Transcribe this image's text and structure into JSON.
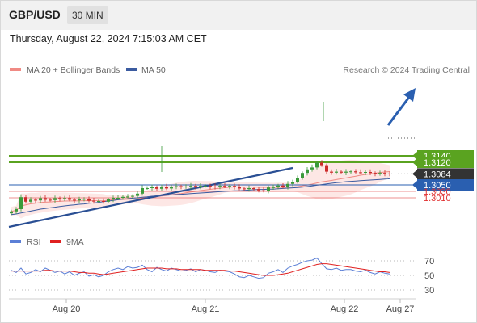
{
  "header": {
    "symbol": "GBP/USD",
    "timeframe": "30 MIN"
  },
  "datetime": "Thursday, August 22, 2024 7:15:03 AM CET",
  "legend": [
    {
      "label": "MA 20 + Bollinger Bands",
      "color": "#f08a84"
    },
    {
      "label": "MA 50",
      "color": "#3b5ba0"
    }
  ],
  "credit": "Research © 2024 Trading Central",
  "rsi_legend": [
    {
      "label": "RSI",
      "color": "#5b7fd6"
    },
    {
      "label": "9MA",
      "color": "#e02020"
    }
  ],
  "levels": [
    {
      "value": 1.314,
      "label": "1.3140",
      "type": "resistance",
      "color": "#5aa320"
    },
    {
      "value": 1.312,
      "label": "1.3120",
      "type": "resistance",
      "color": "#5aa320"
    },
    {
      "value": 1.3084,
      "label": "1.3084",
      "type": "last",
      "color": "#333333"
    },
    {
      "value": 1.305,
      "label": "1.3050",
      "type": "pivot",
      "color": "#2a5fb0"
    },
    {
      "value": 1.303,
      "label": "1.3030",
      "type": "support",
      "color": "#e03030"
    },
    {
      "value": 1.301,
      "label": "1.3010",
      "type": "support",
      "color": "#e03030"
    }
  ],
  "chart_data": {
    "type": "candlestick",
    "x_ticks": [
      "Aug 20",
      "Aug 21",
      "Aug 22",
      "Aug 27"
    ],
    "y_range": [
      1.2955,
      1.3155
    ],
    "rsi_levels": [
      70,
      50,
      30
    ],
    "rsi_range": [
      20,
      80
    ],
    "close": [
      1.2968,
      1.2975,
      1.3012,
      1.2998,
      1.3004,
      1.3002,
      1.3009,
      1.3004,
      1.3003,
      1.3009,
      1.3006,
      1.3009,
      1.3004,
      1.3002,
      1.3005,
      1.3007,
      1.3001,
      1.3,
      1.3,
      1.2998,
      1.3005,
      1.301,
      1.301,
      1.3013,
      1.3014,
      1.3016,
      1.3023,
      1.304,
      1.304,
      1.3043,
      1.3038,
      1.3044,
      1.3039,
      1.3044,
      1.3046,
      1.3043,
      1.3045,
      1.3047,
      1.3043,
      1.3047,
      1.3047,
      1.3045,
      1.3043,
      1.3047,
      1.3045,
      1.3047,
      1.3043,
      1.3039,
      1.3037,
      1.304,
      1.3037,
      1.3033,
      1.3032,
      1.3042,
      1.3043,
      1.3048,
      1.3044,
      1.3053,
      1.306,
      1.3071,
      1.3087,
      1.3098,
      1.3104,
      1.3119,
      1.3111,
      1.3091,
      1.3088,
      1.3091,
      1.3088,
      1.3091,
      1.3092,
      1.3089,
      1.3088,
      1.309,
      1.3087,
      1.3083,
      1.3087,
      1.3085,
      1.3084
    ],
    "ma50": [
      1.2958,
      1.296,
      1.2963,
      1.2966,
      1.2969,
      1.2972,
      1.2975,
      1.2977,
      1.2979,
      1.2981,
      1.2983,
      1.2985,
      1.2987,
      1.2988,
      1.299,
      1.2991,
      1.2993,
      1.2994,
      1.2996,
      1.2998,
      1.3,
      1.3002,
      1.3004,
      1.3006,
      1.3007,
      1.3009,
      1.301,
      1.3012,
      1.3013,
      1.3015,
      1.3016,
      1.3017,
      1.3018,
      1.3019,
      1.302,
      1.3021,
      1.3022,
      1.3023,
      1.3024,
      1.3025,
      1.3026,
      1.3027,
      1.3028,
      1.3029,
      1.303,
      1.3031,
      1.3032,
      1.3032,
      1.3033,
      1.3034,
      1.3035,
      1.3036,
      1.3036,
      1.3037,
      1.3037,
      1.3038,
      1.3039,
      1.304,
      1.3041,
      1.3042,
      1.3043,
      1.3045,
      1.3047,
      1.3049,
      1.3051,
      1.3053,
      1.3055,
      1.3057,
      1.3058,
      1.306,
      1.3061,
      1.3062,
      1.3063,
      1.3064,
      1.3065,
      1.3066,
      1.3067,
      1.3068,
      1.3069
    ],
    "rsi": [
      57,
      54,
      60,
      52,
      54,
      58,
      55,
      60,
      57,
      54,
      56,
      52,
      55,
      50,
      53,
      55,
      49,
      51,
      48,
      50,
      55,
      58,
      60,
      58,
      62,
      60,
      61,
      64,
      58,
      55,
      61,
      58,
      56,
      60,
      58,
      56,
      57,
      59,
      55,
      58,
      57,
      55,
      54,
      57,
      56,
      55,
      52,
      48,
      47,
      50,
      48,
      46,
      47,
      53,
      55,
      58,
      54,
      60,
      63,
      65,
      68,
      70,
      71,
      74,
      66,
      59,
      58,
      60,
      57,
      58,
      58,
      56,
      55,
      57,
      54,
      52,
      55,
      53,
      52
    ],
    "rsi_ma9": [
      56,
      56,
      56,
      56,
      56,
      56,
      56,
      57,
      57,
      56,
      56,
      56,
      56,
      55,
      54,
      54,
      53,
      53,
      52,
      51,
      52,
      53,
      54,
      55,
      56,
      57,
      58,
      59,
      60,
      60,
      60,
      60,
      59,
      59,
      59,
      58,
      58,
      58,
      58,
      58,
      57,
      57,
      57,
      57,
      57,
      56,
      56,
      55,
      54,
      53,
      52,
      51,
      50,
      50,
      50,
      51,
      52,
      53,
      55,
      57,
      59,
      61,
      63,
      65,
      66,
      66,
      65,
      64,
      63,
      62,
      61,
      60,
      59,
      58,
      57,
      56,
      55,
      55,
      54
    ]
  }
}
